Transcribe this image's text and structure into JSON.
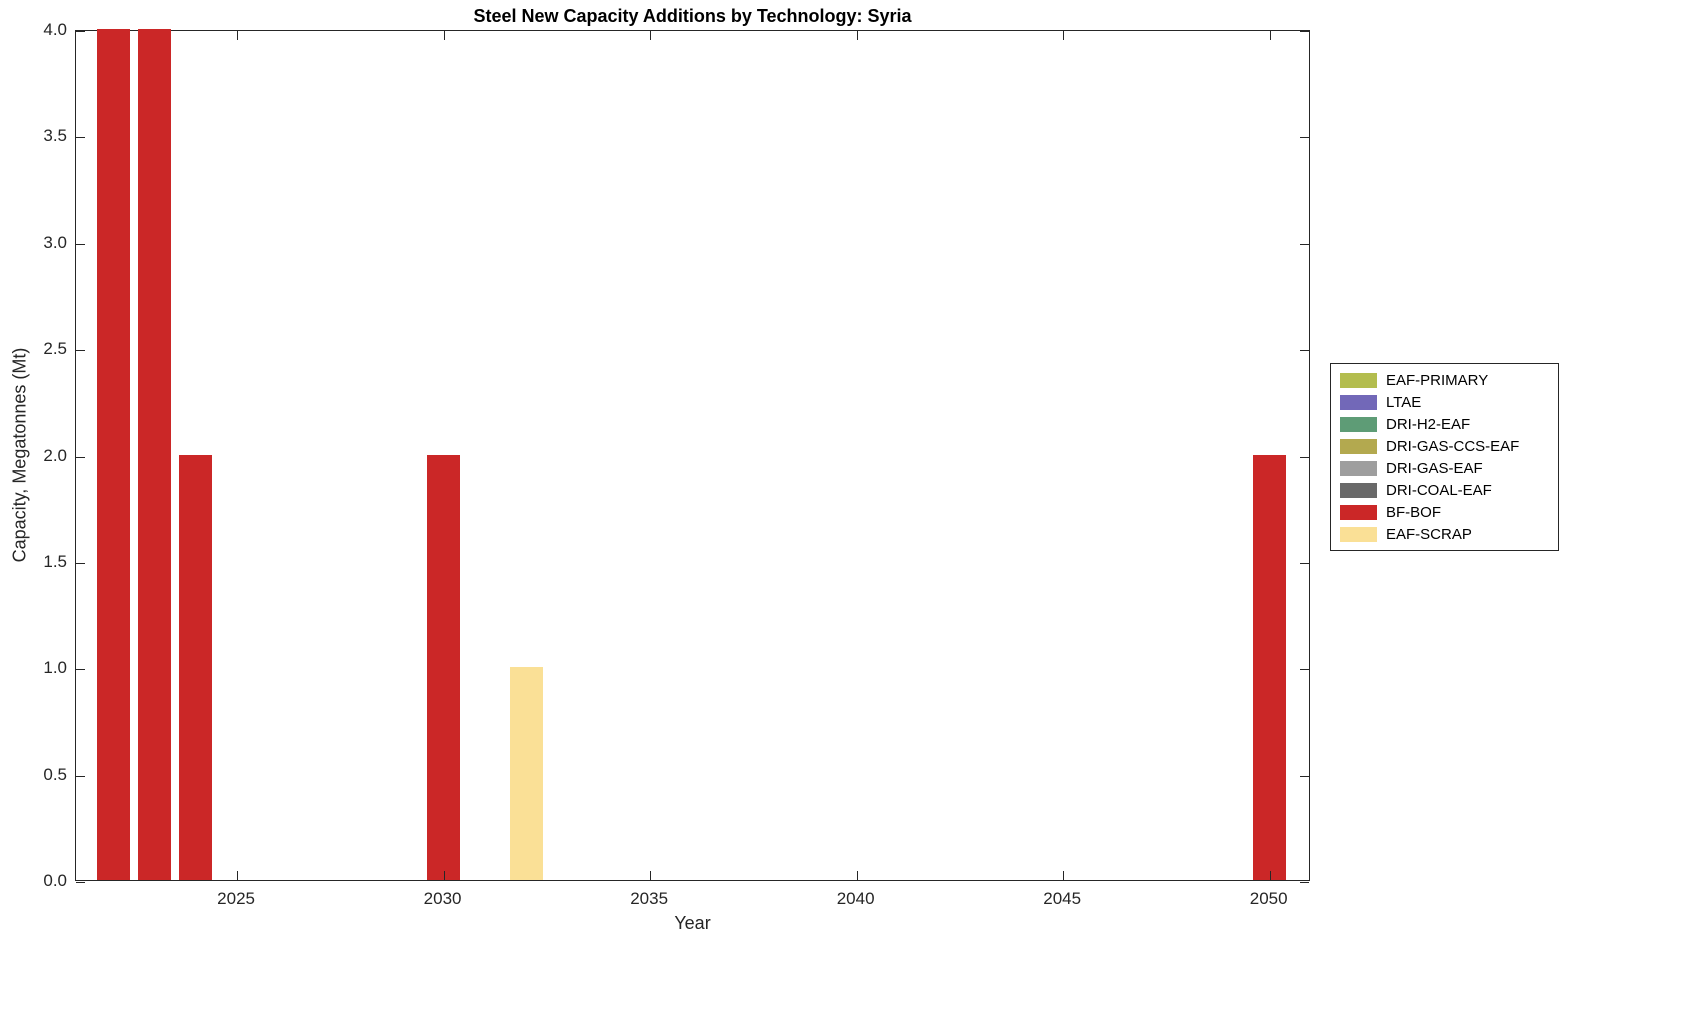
{
  "chart_data": {
    "type": "bar",
    "title": "Steel New Capacity Additions by Technology: Syria",
    "xlabel": "Year",
    "ylabel": "Capacity, Megatonnes (Mt)",
    "xlim": [
      2021.1,
      2051.0
    ],
    "ylim": [
      0,
      4
    ],
    "xticks": [
      2025,
      2030,
      2035,
      2040,
      2045,
      2050
    ],
    "yticks": [
      "0.0",
      "0.5",
      "1.0",
      "1.5",
      "2.0",
      "2.5",
      "3.0",
      "3.5",
      "4.0"
    ],
    "ytick_values": [
      0,
      0.5,
      1,
      1.5,
      2,
      2.5,
      3,
      3.5,
      4
    ],
    "bar_width_years": 0.8,
    "grid": false,
    "legend_position": "right-outside",
    "legend": [
      {
        "label": "EAF-PRIMARY",
        "color": "#b3bd4e"
      },
      {
        "label": "LTAE",
        "color": "#7268b8"
      },
      {
        "label": "DRI-H2-EAF",
        "color": "#5e9c76"
      },
      {
        "label": "DRI-GAS-CCS-EAF",
        "color": "#b3a94f"
      },
      {
        "label": "DRI-GAS-EAF",
        "color": "#9e9e9e"
      },
      {
        "label": "DRI-COAL-EAF",
        "color": "#696969"
      },
      {
        "label": "BF-BOF",
        "color": "#cb2727"
      },
      {
        "label": "EAF-SCRAP",
        "color": "#fae096"
      }
    ],
    "series": [
      {
        "name": "BF-BOF",
        "color": "#cb2727",
        "points": [
          {
            "x": 2022,
            "y": 4.0
          },
          {
            "x": 2023,
            "y": 4.0
          },
          {
            "x": 2024,
            "y": 2.0
          },
          {
            "x": 2030,
            "y": 2.0
          },
          {
            "x": 2050,
            "y": 2.0
          }
        ]
      },
      {
        "name": "EAF-SCRAP",
        "color": "#fae096",
        "points": [
          {
            "x": 2032,
            "y": 1.0
          }
        ]
      }
    ]
  }
}
